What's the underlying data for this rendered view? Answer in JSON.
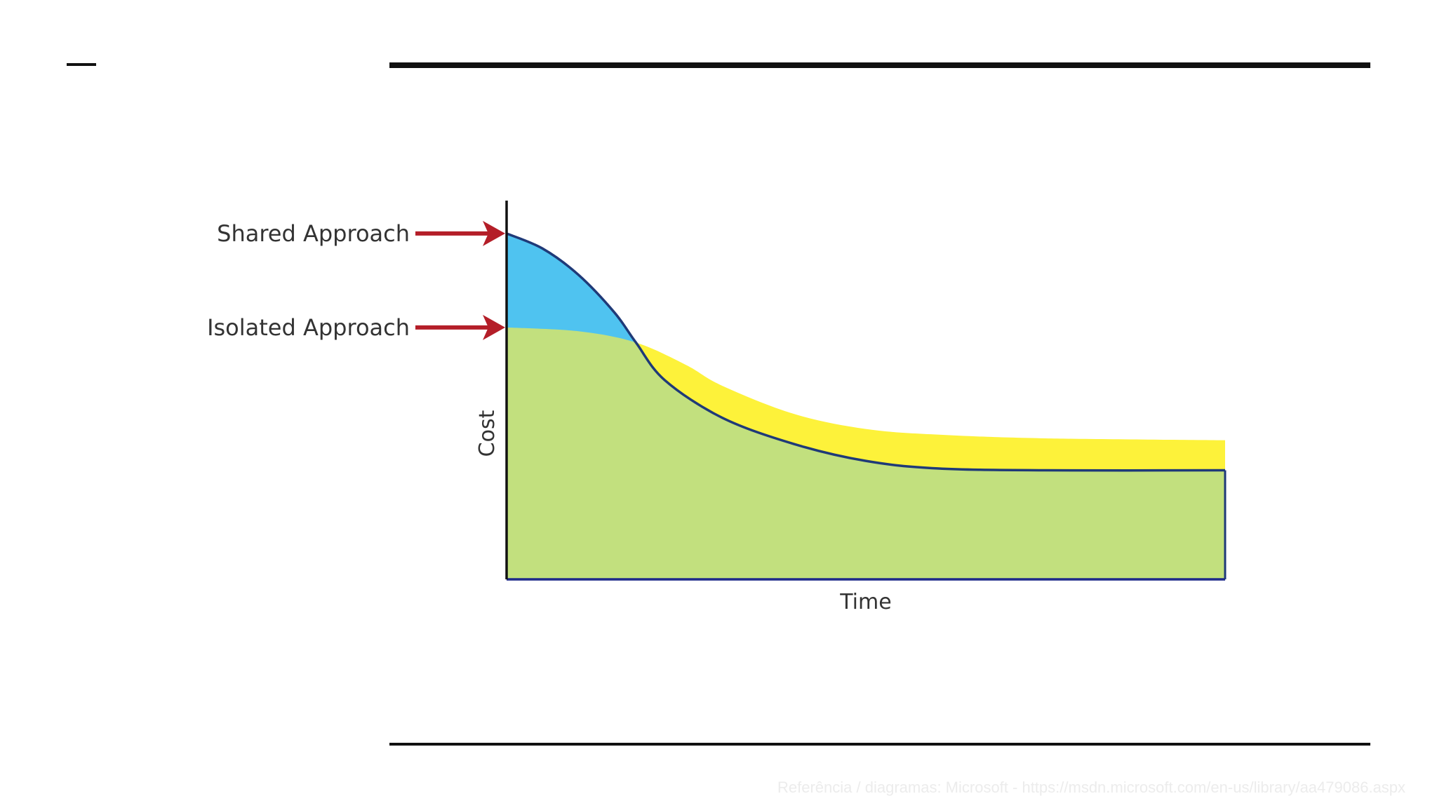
{
  "reference": "Referência / diagramas: Microsoft - https://msdn.microsoft.com/en-us/library/aa479086.aspx",
  "colors": {
    "blue_area": "#4fc3f0",
    "yellow_area": "#fdf23a",
    "green_area": "#c2e07e",
    "curve": "#1f3a78",
    "axis": "#1e2a8a",
    "arrow": "#b41e28"
  },
  "chart_data": {
    "type": "area",
    "xlabel": "Time",
    "ylabel": "Cost",
    "xlim": [
      0,
      100
    ],
    "ylim": [
      0,
      100
    ],
    "grid": false,
    "series": [
      {
        "name": "Shared Approach",
        "x": [
          0,
          5,
          10,
          15,
          18,
          22,
          30,
          40,
          50,
          60,
          75,
          100
        ],
        "values": [
          92,
          88,
          81,
          71,
          63,
          53,
          43,
          36,
          31.5,
          29.5,
          29,
          29
        ]
      },
      {
        "name": "Isolated Approach",
        "x": [
          0,
          10,
          18,
          25,
          30,
          40,
          50,
          60,
          75,
          100
        ],
        "values": [
          67,
          66,
          63,
          57,
          51.5,
          44,
          40,
          38.5,
          37.5,
          37
        ]
      }
    ],
    "annotations": [
      {
        "text": "Shared Approach",
        "series": 0
      },
      {
        "text": "Isolated Approach",
        "series": 1
      }
    ]
  }
}
